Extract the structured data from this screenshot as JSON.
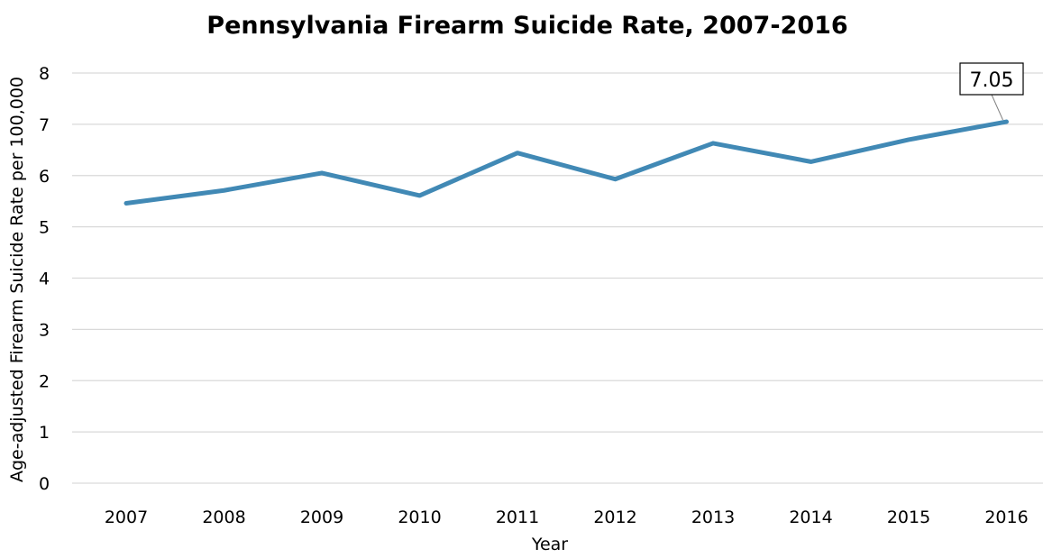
{
  "chart_data": {
    "type": "line",
    "title": "Pennsylvania Firearm Suicide Rate, 2007-2016",
    "xlabel": "Year",
    "ylabel": "Age-adjusted Firearm Suicide Rate per 100,000",
    "categories": [
      "2007",
      "2008",
      "2009",
      "2010",
      "2011",
      "2012",
      "2013",
      "2014",
      "2015",
      "2016"
    ],
    "series": [
      {
        "values": [
          5.46,
          5.71,
          6.05,
          5.61,
          6.44,
          5.93,
          6.63,
          6.27,
          6.7,
          7.05
        ],
        "color": "#4189b5"
      }
    ],
    "ylim": [
      0,
      8
    ],
    "yticks": [
      "0",
      "1",
      "2",
      "3",
      "4",
      "5",
      "6",
      "7",
      "8"
    ],
    "grid": true,
    "legend": "none",
    "annotation": {
      "category": "2016",
      "text": "7.05"
    }
  }
}
